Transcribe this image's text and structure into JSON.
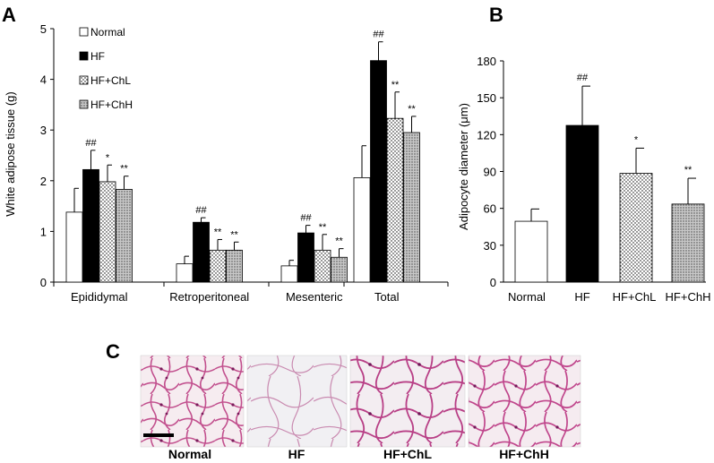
{
  "panels": {
    "a": "A",
    "b": "B",
    "c": "C"
  },
  "series_styles": [
    {
      "name": "Normal",
      "fill": "#ffffff",
      "pattern": "none"
    },
    {
      "name": "HF",
      "fill": "#000000",
      "pattern": "none"
    },
    {
      "name": "HF+ChL",
      "fill": "#ffffff",
      "pattern": "dots-sparse"
    },
    {
      "name": "HF+ChH",
      "fill": "#cfcfcf",
      "pattern": "dots-dense"
    }
  ],
  "chart_data": [
    {
      "type": "bar",
      "panel": "A",
      "categories": [
        "Epididymal",
        "Retroperitoneal",
        "Mesenteric",
        "Total"
      ],
      "ylabel": "White adipose tissue (g)",
      "xlabel": "",
      "ylim": [
        0,
        5
      ],
      "yticks": [
        "0",
        "1",
        "2",
        "3",
        "4",
        "5"
      ],
      "legend": {
        "placement": "top-left",
        "entries": [
          "Normal",
          "HF",
          "HF+ChL",
          "HF+ChH"
        ]
      },
      "series": [
        {
          "name": "Normal",
          "values": [
            1.38,
            0.36,
            0.32,
            2.06
          ],
          "errors": [
            0.47,
            0.15,
            0.11,
            0.63
          ],
          "annotations": [
            "",
            "",
            "",
            ""
          ]
        },
        {
          "name": "HF",
          "values": [
            2.22,
            1.18,
            0.97,
            4.37
          ],
          "errors": [
            0.38,
            0.09,
            0.15,
            0.37
          ],
          "annotations": [
            "##",
            "##",
            "##",
            "##"
          ]
        },
        {
          "name": "HF+ChL",
          "values": [
            1.98,
            0.63,
            0.63,
            3.23
          ],
          "errors": [
            0.33,
            0.21,
            0.31,
            0.52
          ],
          "annotations": [
            "*",
            "**",
            "**",
            "**"
          ]
        },
        {
          "name": "HF+ChH",
          "values": [
            1.83,
            0.63,
            0.49,
            2.95
          ],
          "errors": [
            0.26,
            0.16,
            0.17,
            0.32
          ],
          "annotations": [
            "**",
            "**",
            "**",
            "**"
          ]
        }
      ]
    },
    {
      "type": "bar",
      "panel": "B",
      "categories": [
        "Normal",
        "HF",
        "HF+ChL",
        "HF+ChH"
      ],
      "ylabel": "Adipocyte diameter (μm)",
      "xlabel": "",
      "ylim": [
        0,
        180
      ],
      "yticks": [
        "0",
        "30",
        "60",
        "90",
        "120",
        "150",
        "180"
      ],
      "values": [
        49.5,
        127.5,
        88.5,
        63.5
      ],
      "errors": [
        10,
        32,
        20.5,
        21
      ],
      "annotations": [
        "",
        "##",
        "*",
        "**"
      ]
    }
  ],
  "histology": {
    "labels": [
      "Normal",
      "HF",
      "HF+ChL",
      "HF+ChH"
    ]
  }
}
